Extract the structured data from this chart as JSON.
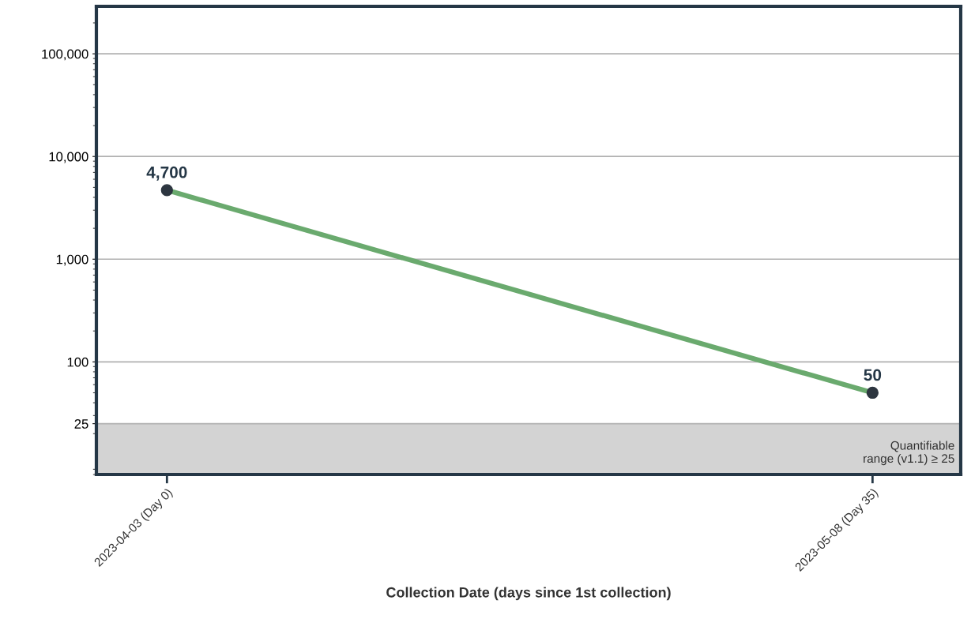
{
  "chart_data": {
    "type": "line",
    "xlabel": "Collection Date (days since 1st collection)",
    "categories": [
      "2023-04-03 (Day 0)",
      "2023-05-08 (Day 35)"
    ],
    "series": [
      {
        "color": "#6aaa6e",
        "values": [
          4700,
          50
        ],
        "value_labels": [
          "4,700",
          "50"
        ]
      }
    ],
    "marker": "circle",
    "line_style": "solid",
    "log": "y",
    "grid": "y",
    "ylim": [
      8,
      290000
    ],
    "yticks": [
      {
        "value": 25,
        "label": "25"
      },
      {
        "value": 100,
        "label": "100"
      },
      {
        "value": 1000,
        "label": "1,000"
      },
      {
        "value": 10000,
        "label": "10,000"
      },
      {
        "value": 100000,
        "label": "100,000"
      }
    ],
    "bands": [
      {
        "axis": "y",
        "from": 8,
        "to": 25,
        "label": "Quantifiable\nrange (v1.1) ≥ 25",
        "color": "#d3d3d3"
      }
    ]
  }
}
